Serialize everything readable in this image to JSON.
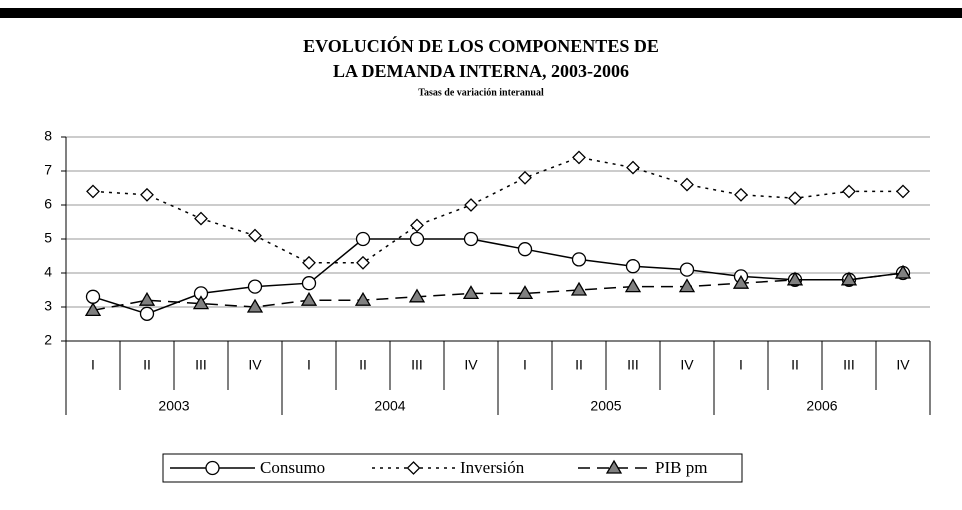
{
  "chart_data": {
    "type": "line",
    "title": [
      "EVOLUCIÓN DE LOS COMPONENTES DE",
      "LA DEMANDA INTERNA, 2003-2006"
    ],
    "subtitle": "Tasas de variación interanual",
    "categories": [
      "I",
      "II",
      "III",
      "IV",
      "I",
      "II",
      "III",
      "IV",
      "I",
      "II",
      "III",
      "IV",
      "I",
      "II",
      "III",
      "IV"
    ],
    "years": [
      "2003",
      "2004",
      "2005",
      "2006"
    ],
    "ylim": [
      2,
      8
    ],
    "yticks": [
      2,
      3,
      4,
      5,
      6,
      7,
      8
    ],
    "grid": true,
    "series": [
      {
        "name": "Consumo",
        "color": "#000000",
        "dash": "solid",
        "marker": "circle",
        "marker_fill": "#ffffff",
        "values": [
          3.3,
          2.8,
          3.4,
          3.6,
          3.7,
          5.0,
          5.0,
          5.0,
          4.7,
          4.4,
          4.2,
          4.1,
          3.9,
          3.8,
          3.8,
          4.0
        ]
      },
      {
        "name": "Inversión",
        "color": "#000000",
        "dash": "dotted",
        "marker": "diamond",
        "marker_fill": "#ffffff",
        "values": [
          6.4,
          6.3,
          5.6,
          5.1,
          4.3,
          4.3,
          5.4,
          6.0,
          6.8,
          7.4,
          7.1,
          6.6,
          6.3,
          6.2,
          6.4,
          6.4
        ]
      },
      {
        "name": "PIB pm",
        "color": "#000000",
        "dash": "dashed",
        "marker": "triangle",
        "marker_fill": "#808080",
        "values": [
          2.9,
          3.2,
          3.1,
          3.0,
          3.2,
          3.2,
          3.3,
          3.4,
          3.4,
          3.5,
          3.6,
          3.6,
          3.7,
          3.8,
          3.8,
          4.0
        ]
      }
    ],
    "legend": "bottom"
  }
}
